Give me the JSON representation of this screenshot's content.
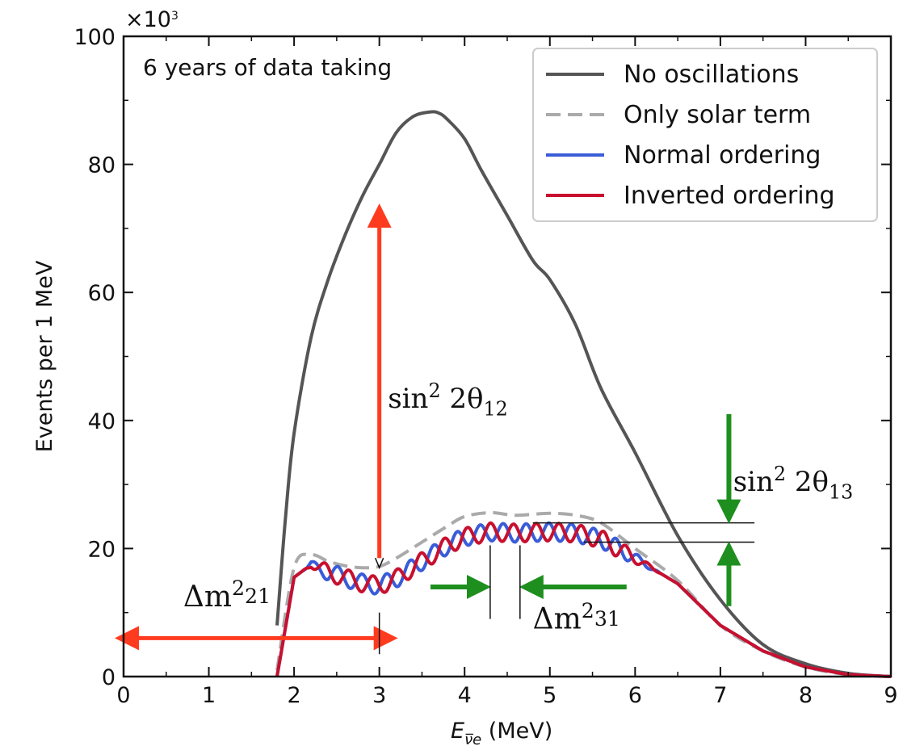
{
  "chart_data": {
    "type": "line",
    "multiplier_label": "×10",
    "multiplier_exp": "3",
    "xlabel_base": "E",
    "xlabel_sub": "ν̅e",
    "xlabel_unit": "(MeV)",
    "ylabel": "Events per 1 MeV",
    "xlim": [
      0,
      9
    ],
    "ylim": [
      0,
      100
    ],
    "x_ticks": [
      "0",
      "1",
      "2",
      "3",
      "4",
      "5",
      "6",
      "7",
      "8",
      "9"
    ],
    "y_ticks": [
      "0",
      "20",
      "40",
      "60",
      "80",
      "100"
    ],
    "annotation_text": "6 years of data taking",
    "grid": false,
    "legend_position": "top-right",
    "series": [
      {
        "name": "No oscillations",
        "color": "#555555",
        "style": "solid",
        "x": [
          1.8,
          1.9,
          2.0,
          2.2,
          2.4,
          2.6,
          2.8,
          3.0,
          3.2,
          3.4,
          3.6,
          3.7,
          3.8,
          4.0,
          4.2,
          4.5,
          4.8,
          5.0,
          5.3,
          5.6,
          6.0,
          6.5,
          7.0,
          7.5,
          8.0,
          8.5,
          9.0
        ],
        "y": [
          8,
          25,
          38,
          53,
          62,
          69,
          75,
          80,
          85,
          87.5,
          88.2,
          88,
          87,
          84,
          79,
          72,
          65,
          62,
          55,
          45,
          35,
          22,
          12,
          5,
          2,
          0.5,
          0
        ]
      },
      {
        "name": "Only solar term",
        "color": "#aaaaaa",
        "style": "dashed",
        "x": [
          1.8,
          2.0,
          2.2,
          2.4,
          2.6,
          2.8,
          3.0,
          3.2,
          3.5,
          3.8,
          4.0,
          4.3,
          4.6,
          5.0,
          5.3,
          5.6,
          6.0,
          6.5,
          7.0,
          7.5,
          8.0,
          8.5,
          9.0
        ],
        "y": [
          1,
          17,
          19,
          18,
          17.3,
          17,
          17.2,
          18.5,
          21,
          23.5,
          25,
          25.6,
          25.2,
          25.5,
          25.2,
          24,
          20,
          15,
          8,
          4,
          1.5,
          0.3,
          0
        ]
      },
      {
        "name": "Normal ordering",
        "color": "#3a5cd8",
        "style": "solid",
        "osc_phase": 0.9,
        "x": [
          1.8,
          2.0,
          2.2,
          2.4,
          2.6,
          2.8,
          3.0,
          3.2,
          3.5,
          3.8,
          4.0,
          4.3,
          4.6,
          5.0,
          5.3,
          5.6,
          6.0,
          6.5,
          7.0,
          7.5,
          8.0,
          8.5,
          9.0
        ],
        "y": [
          0,
          15.5,
          17.5,
          16.3,
          15.4,
          14.6,
          14.2,
          15.3,
          18,
          20.5,
          21.8,
          22.6,
          22.4,
          22.6,
          22.4,
          21.5,
          18.5,
          14.5,
          8,
          4,
          1.5,
          0.3,
          0
        ]
      },
      {
        "name": "Inverted ordering",
        "color": "#c8102e",
        "style": "solid",
        "osc_phase": 0,
        "x": [
          1.8,
          2.0,
          2.2,
          2.4,
          2.6,
          2.8,
          3.0,
          3.2,
          3.5,
          3.8,
          4.0,
          4.3,
          4.6,
          5.0,
          5.3,
          5.6,
          6.0,
          6.5,
          7.0,
          7.5,
          8.0,
          8.5,
          9.0
        ],
        "y": [
          0,
          15.5,
          17.5,
          16.3,
          15.4,
          14.6,
          14.2,
          15.3,
          18,
          20.5,
          21.8,
          22.6,
          22.4,
          22.6,
          22.4,
          21.5,
          18.5,
          14.5,
          8,
          4,
          1.5,
          0.3,
          0
        ]
      }
    ],
    "annotations": {
      "sin12": {
        "lhs": "sin",
        "sup": "2",
        "mid": " 2θ",
        "sub": "12",
        "arrow_x": 3.0,
        "y_from": 72,
        "y_to": 17,
        "text_x": 3.1,
        "text_y": 42
      },
      "sin13": {
        "lhs": "sin",
        "sup": "2",
        "mid": " 2θ",
        "sub": "13",
        "arrow_x": 7.1,
        "y_top_start": 41,
        "y_top_end": 24,
        "y_bottom_start": 11,
        "y_bottom_end": 21,
        "line_y1": 24,
        "line_y2": 21,
        "line_x_from": 4.8,
        "line_x_to": 7.4,
        "text_x": 7.15,
        "text_y": 29
      },
      "dm21": {
        "lhs": "Δm",
        "sup": "2",
        "sub": "21",
        "y": 6,
        "x_from": 0,
        "x_to": 3.0,
        "text_x": 0.7,
        "text_y": 11
      },
      "dm31": {
        "lhs": "Δm",
        "sup": "2",
        "sub": "31",
        "y": 14,
        "x_left_start": 3.6,
        "x_left_end": 4.3,
        "x_right_start": 5.9,
        "x_right_end": 4.65,
        "text_x": 4.8,
        "text_y": 7.5
      }
    }
  }
}
